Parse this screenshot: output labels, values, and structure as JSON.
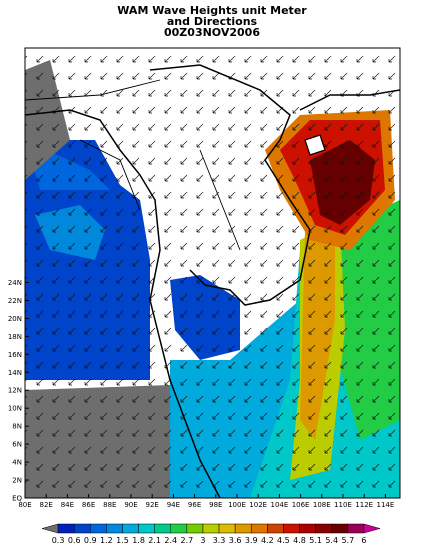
{
  "title_lines": [
    "WAM Wave Heights unit Meter",
    "and Directions",
    "00Z03NOV2006"
  ],
  "lon_labels": [
    "80E",
    "82E",
    "84E",
    "86E",
    "88E",
    "90E",
    "92E",
    "94E",
    "96E",
    "98E",
    "100E",
    "102E",
    "104E",
    "106E",
    "108E",
    "110E",
    "112E",
    "114E"
  ],
  "lat_labels": [
    "EQ",
    "2N",
    "4N",
    "6N",
    "8N",
    "10N",
    "12N",
    "14N",
    "16N",
    "18N",
    "20N",
    "22N",
    "24N"
  ],
  "colorbar": {
    "labels": [
      "0.3",
      "0.6",
      "0.9",
      "1.2",
      "1.5",
      "1.8",
      "2.1",
      "2.4",
      "2.7",
      "3",
      "3.3",
      "3.6",
      "3.9",
      "4.2",
      "4.5",
      "4.8",
      "5.1",
      "5.4",
      "5.7",
      "6"
    ],
    "colors": [
      "#6e6e6e",
      "#0022bb",
      "#0044cc",
      "#0066dd",
      "#0088dd",
      "#00aadd",
      "#00c8c8",
      "#00cc88",
      "#22cc44",
      "#77cc00",
      "#bbcc00",
      "#ddbb00",
      "#dd9900",
      "#dd7700",
      "#cc4400",
      "#cc1100",
      "#aa0000",
      "#880000",
      "#660000",
      "#990055",
      "#cc0099"
    ]
  }
}
